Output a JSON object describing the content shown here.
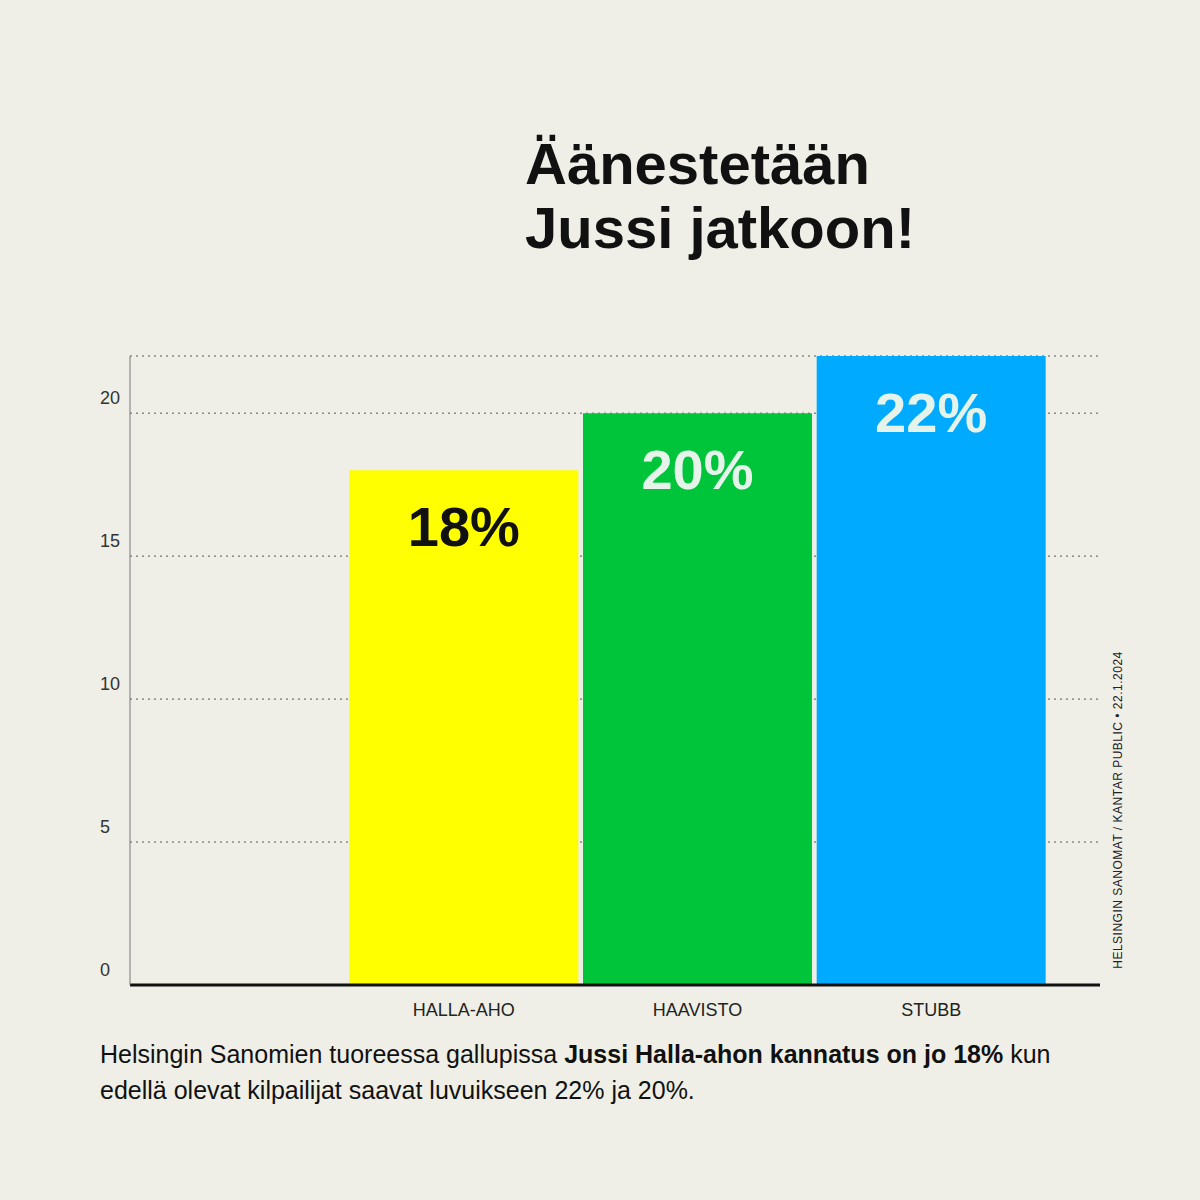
{
  "chart_data": {
    "type": "bar",
    "title": "Äänestetään Jussi jatkoon!",
    "categories": [
      "HALLA-AHO",
      "HAAVISTO",
      "STUBB"
    ],
    "values": [
      18,
      20,
      22
    ],
    "value_labels": [
      "18%",
      "20%",
      "22%"
    ],
    "data_labels": true,
    "colors": [
      "#ffff00",
      "#00c43a",
      "#00aaff"
    ],
    "ylim": [
      0,
      22
    ],
    "yticks": [
      0,
      5,
      10,
      15,
      20
    ],
    "grid": true,
    "source": "HELSINGIN SANOMAT / KANTAR PUBLIC • 22.1.2024",
    "footer": [
      "Helsingin Sanomien tuoreessa gallupissa ",
      "Jussi Halla-ahon kannatus on jo 18%",
      " kun edellä olevat kilpailijat saavat luvuikseen 22% ja 20%."
    ]
  }
}
